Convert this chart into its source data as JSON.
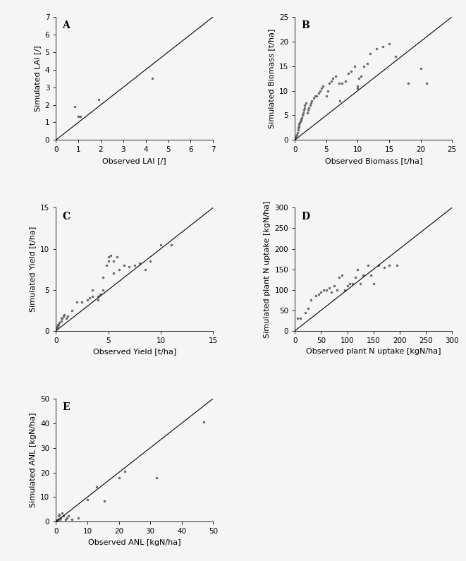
{
  "panel_A": {
    "label": "A",
    "xlabel": "Observed LAI [/]",
    "ylabel": "Simulated LAI [/]",
    "xlim": [
      0,
      7
    ],
    "ylim": [
      0,
      7
    ],
    "xticks": [
      0,
      1,
      2,
      3,
      4,
      5,
      6,
      7
    ],
    "yticks": [
      0,
      1,
      2,
      3,
      4,
      5,
      6,
      7
    ],
    "x": [
      0.85,
      1.0,
      1.1,
      1.9,
      4.3
    ],
    "y": [
      1.9,
      1.35,
      1.35,
      2.3,
      3.5
    ]
  },
  "panel_B": {
    "label": "B",
    "xlabel": "Observed Biomass [t/ha]",
    "ylabel": "Simulated Biomass [t/ha]",
    "xlim": [
      0,
      25
    ],
    "ylim": [
      0,
      25
    ],
    "xticks": [
      0,
      5,
      10,
      15,
      20,
      25
    ],
    "yticks": [
      0,
      5,
      10,
      15,
      20,
      25
    ],
    "x": [
      0.1,
      0.2,
      0.3,
      0.4,
      0.5,
      0.5,
      0.6,
      0.7,
      0.8,
      0.9,
      1.0,
      1.0,
      1.1,
      1.2,
      1.3,
      1.4,
      1.5,
      1.6,
      1.8,
      2.0,
      2.1,
      2.2,
      2.4,
      2.5,
      2.7,
      3.0,
      3.2,
      3.5,
      3.8,
      4.0,
      4.2,
      4.5,
      5.0,
      5.2,
      5.5,
      5.8,
      6.0,
      6.5,
      7.0,
      7.2,
      7.5,
      8.0,
      8.5,
      9.0,
      9.5,
      10.0,
      10.0,
      10.2,
      10.5,
      11.0,
      11.5,
      12.0,
      13.0,
      14.0,
      15.0,
      16.0,
      18.0,
      20.0,
      21.0
    ],
    "y": [
      0.5,
      0.8,
      1.0,
      1.5,
      2.0,
      2.5,
      2.8,
      3.2,
      3.5,
      3.8,
      4.0,
      4.2,
      4.5,
      5.0,
      5.5,
      6.0,
      6.5,
      7.0,
      7.5,
      5.5,
      6.0,
      6.5,
      7.0,
      7.5,
      8.0,
      8.5,
      9.0,
      9.0,
      9.5,
      10.0,
      10.5,
      11.0,
      9.0,
      10.0,
      11.5,
      12.0,
      12.5,
      13.0,
      11.5,
      8.0,
      11.5,
      12.0,
      13.5,
      14.0,
      15.0,
      10.5,
      11.0,
      12.5,
      13.0,
      15.0,
      15.5,
      17.5,
      18.5,
      19.0,
      19.5,
      17.0,
      11.5,
      14.5,
      11.5
    ]
  },
  "panel_C": {
    "label": "C",
    "xlabel": "Observed Yield [t/ha]",
    "ylabel": "Simulated Yield [t/ha]",
    "xlim": [
      0,
      15
    ],
    "ylim": [
      0,
      15
    ],
    "xticks": [
      0,
      5,
      10,
      15
    ],
    "yticks": [
      0,
      5,
      10,
      15
    ],
    "x": [
      0.05,
      0.1,
      0.15,
      0.2,
      0.25,
      0.3,
      0.5,
      0.5,
      0.6,
      0.7,
      0.8,
      1.0,
      1.1,
      1.5,
      2.0,
      2.5,
      3.0,
      3.2,
      3.5,
      3.5,
      4.0,
      4.0,
      4.2,
      4.5,
      4.5,
      4.8,
      5.0,
      5.0,
      5.2,
      5.5,
      5.5,
      5.8,
      6.0,
      6.5,
      7.0,
      7.5,
      8.0,
      8.5,
      9.0,
      10.0,
      11.0
    ],
    "y": [
      0.3,
      0.5,
      0.5,
      0.8,
      0.8,
      1.0,
      1.2,
      1.5,
      1.5,
      1.8,
      2.0,
      1.5,
      1.8,
      2.5,
      3.5,
      3.5,
      3.8,
      4.0,
      4.2,
      5.0,
      3.8,
      4.2,
      4.5,
      5.0,
      6.5,
      8.0,
      8.5,
      9.0,
      9.2,
      7.0,
      8.5,
      9.0,
      7.5,
      8.0,
      7.8,
      8.0,
      8.2,
      7.5,
      8.5,
      10.5,
      10.5
    ]
  },
  "panel_D": {
    "label": "D",
    "xlabel": "Observed plant N uptake [kgN/ha]",
    "ylabel": "Simulated plant N uptake [kgN/ha]",
    "xlim": [
      0,
      300
    ],
    "ylim": [
      0,
      300
    ],
    "xticks": [
      0,
      50,
      100,
      150,
      200,
      250,
      300
    ],
    "yticks": [
      0,
      50,
      100,
      150,
      200,
      250,
      300
    ],
    "x": [
      5,
      10,
      20,
      25,
      30,
      40,
      45,
      50,
      55,
      60,
      65,
      70,
      75,
      80,
      85,
      90,
      95,
      100,
      105,
      110,
      115,
      120,
      125,
      130,
      140,
      145,
      150,
      160,
      170,
      180,
      195
    ],
    "y": [
      30,
      30,
      45,
      55,
      75,
      85,
      90,
      95,
      100,
      100,
      105,
      95,
      110,
      100,
      130,
      135,
      100,
      110,
      115,
      115,
      130,
      150,
      115,
      135,
      160,
      135,
      115,
      160,
      155,
      160,
      160
    ]
  },
  "panel_E": {
    "label": "E",
    "xlabel": "Observed ANL [kgN/ha]",
    "ylabel": "Simulated ANL [kgN/ha]",
    "xlim": [
      0,
      50
    ],
    "ylim": [
      0,
      50
    ],
    "xticks": [
      0,
      10,
      20,
      30,
      40,
      50
    ],
    "yticks": [
      0,
      10,
      20,
      30,
      40,
      50
    ],
    "x": [
      0.2,
      0.3,
      0.5,
      0.8,
      1.0,
      1.2,
      1.5,
      2.0,
      2.5,
      3.0,
      3.5,
      4.0,
      5.0,
      7.0,
      10.0,
      13.0,
      15.5,
      20.0,
      22.0,
      32.0,
      47.0
    ],
    "y": [
      0.3,
      0.8,
      1.0,
      2.5,
      3.0,
      1.0,
      1.5,
      3.5,
      2.5,
      1.0,
      1.5,
      2.5,
      1.0,
      1.5,
      9.0,
      14.0,
      8.5,
      18.0,
      20.5,
      18.0,
      40.5
    ]
  },
  "marker": ".",
  "marker_size": 4,
  "line_color": "black",
  "marker_color": "#666666",
  "background_color": "#f5f5f5",
  "label_fontsize": 8,
  "tick_fontsize": 7.5,
  "panel_label_fontsize": 10
}
